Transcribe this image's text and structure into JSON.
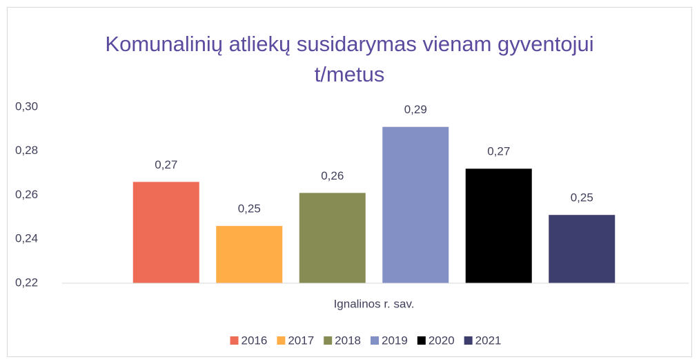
{
  "chart_data": {
    "type": "bar",
    "title": "Komunalinių atliekų susidarymas vienam gyventojui t/metus",
    "categories": [
      "Ignalinos r. sav."
    ],
    "series": [
      {
        "name": "2016",
        "color": "#ee6c55",
        "values": [
          0.266
        ],
        "value_labels": [
          "0,27"
        ]
      },
      {
        "name": "2017",
        "color": "#ffad47",
        "values": [
          0.246
        ],
        "value_labels": [
          "0,25"
        ]
      },
      {
        "name": "2018",
        "color": "#878c55",
        "values": [
          0.261
        ],
        "value_labels": [
          "0,26"
        ]
      },
      {
        "name": "2019",
        "color": "#8390c6",
        "values": [
          0.291
        ],
        "value_labels": [
          "0,29"
        ]
      },
      {
        "name": "2020",
        "color": "#000000",
        "values": [
          0.272
        ],
        "value_labels": [
          "0,27"
        ]
      },
      {
        "name": "2021",
        "color": "#3d3d6e",
        "values": [
          0.251
        ],
        "value_labels": [
          "0,25"
        ]
      }
    ],
    "ylim": [
      0.22,
      0.3
    ],
    "yticks": [
      {
        "value": 0.22,
        "label": "0,22"
      },
      {
        "value": 0.24,
        "label": "0,24"
      },
      {
        "value": 0.26,
        "label": "0,26"
      },
      {
        "value": 0.28,
        "label": "0,28"
      },
      {
        "value": 0.3,
        "label": "0,30"
      }
    ],
    "grid": false,
    "legend": "bottom"
  }
}
